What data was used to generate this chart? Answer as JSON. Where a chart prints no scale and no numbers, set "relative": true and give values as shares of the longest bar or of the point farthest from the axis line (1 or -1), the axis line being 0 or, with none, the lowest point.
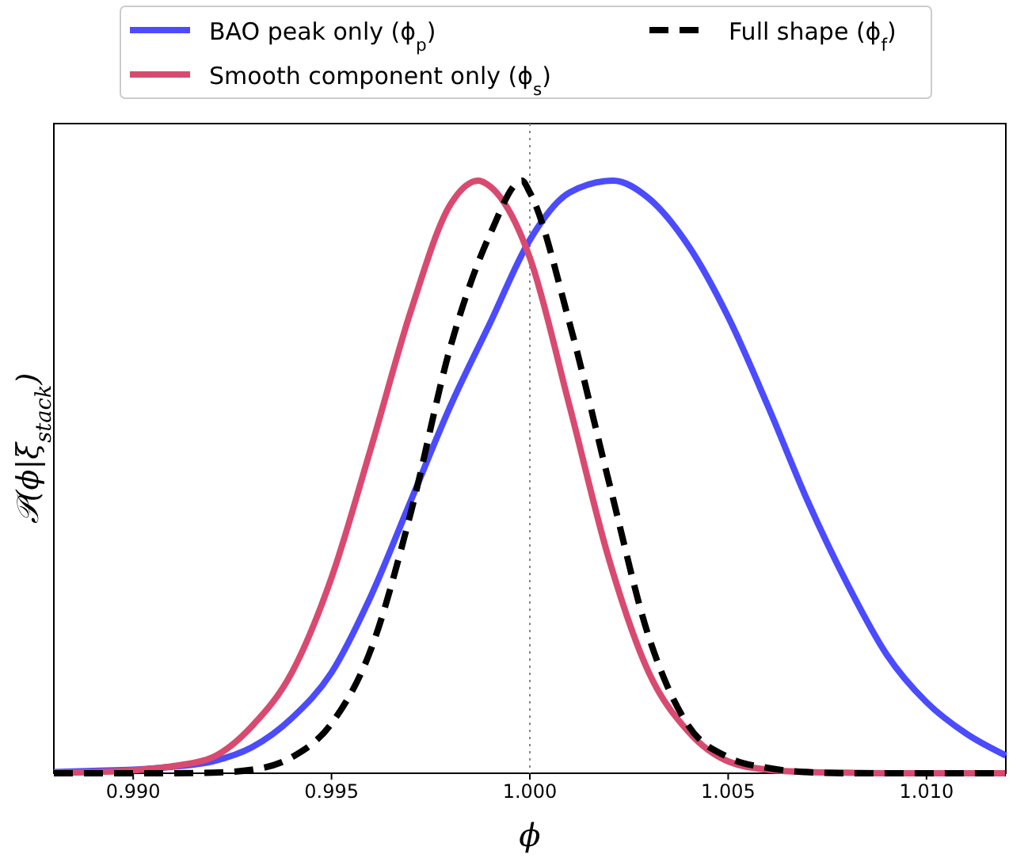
{
  "chart_data": {
    "type": "line",
    "relative": true,
    "xlabel": "ϕ",
    "ylabel": "𝒫(ϕ|ξ$_{stack}$)",
    "xlim": [
      0.988,
      1.012
    ],
    "xticks": [
      {
        "value": 0.99,
        "label": "0.990"
      },
      {
        "value": 0.995,
        "label": "0.995"
      },
      {
        "value": 1.0,
        "label": "1.000"
      },
      {
        "value": 1.005,
        "label": "1.005"
      },
      {
        "value": 1.01,
        "label": "1.010"
      }
    ],
    "legend": "top",
    "grid": false,
    "ref_lines": [
      {
        "axis": "x",
        "value": 1.0,
        "color": "#888888",
        "line_style": "dotted"
      }
    ],
    "series": [
      {
        "name": "BAO peak only (ϕ$_{p}$)",
        "color": "#4b4bff",
        "line_style": "solid",
        "x": [
          0.988,
          0.989,
          0.99,
          0.991,
          0.992,
          0.993,
          0.994,
          0.995,
          0.996,
          0.997,
          0.998,
          0.999,
          1.0,
          1.001,
          1.0021,
          1.003,
          1.004,
          1.005,
          1.006,
          1.007,
          1.008,
          1.009,
          1.01,
          1.011,
          1.012
        ],
        "values": [
          0.002,
          0.004,
          0.006,
          0.011,
          0.02,
          0.044,
          0.093,
          0.17,
          0.3,
          0.46,
          0.62,
          0.76,
          0.9,
          0.98,
          1.0,
          0.97,
          0.89,
          0.77,
          0.62,
          0.46,
          0.32,
          0.2,
          0.12,
          0.067,
          0.03
        ]
      },
      {
        "name": "Smooth component only (ϕ$_{s}$)",
        "color": "#d94a70",
        "line_style": "solid",
        "x": [
          0.988,
          0.989,
          0.99,
          0.991,
          0.992,
          0.993,
          0.994,
          0.995,
          0.996,
          0.997,
          0.998,
          0.9987,
          0.999,
          1.0,
          1.001,
          1.002,
          1.003,
          1.004,
          1.005,
          1.006,
          1.007,
          1.008,
          1.009,
          1.01,
          1.011,
          1.012
        ],
        "values": [
          0.001,
          0.002,
          0.005,
          0.012,
          0.027,
          0.08,
          0.17,
          0.33,
          0.55,
          0.78,
          0.96,
          1.0,
          0.99,
          0.87,
          0.62,
          0.36,
          0.17,
          0.07,
          0.02,
          0.006,
          0.002,
          0.001,
          0.0,
          0.0,
          0.0,
          0.0
        ]
      },
      {
        "name": "Full shape (ϕ$_{f}$)",
        "color": "#000000",
        "line_style": "dashed",
        "x": [
          0.988,
          0.989,
          0.99,
          0.991,
          0.992,
          0.993,
          0.994,
          0.995,
          0.996,
          0.997,
          0.998,
          0.999,
          0.9998,
          1.0,
          1.001,
          1.002,
          1.003,
          1.004,
          1.005,
          1.006,
          1.007,
          1.008,
          1.009,
          1.01,
          1.011,
          1.012
        ],
        "values": [
          0.0,
          0.0,
          0.0,
          0.0,
          0.001,
          0.006,
          0.027,
          0.084,
          0.21,
          0.44,
          0.72,
          0.91,
          1.0,
          0.98,
          0.76,
          0.49,
          0.23,
          0.08,
          0.027,
          0.009,
          0.002,
          0.0,
          0.0,
          0.0,
          0.0,
          0.0
        ]
      }
    ]
  }
}
